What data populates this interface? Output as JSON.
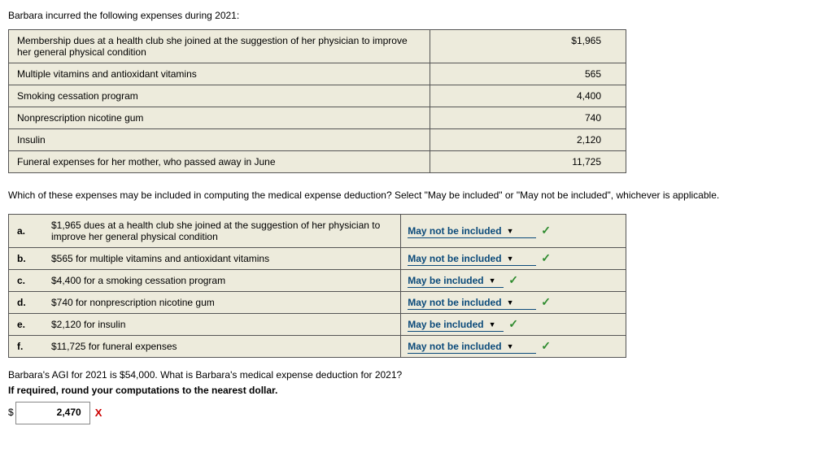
{
  "intro": "Barbara incurred the following expenses during 2021:",
  "expenses": [
    {
      "desc": "Membership dues at a health club she joined at the suggestion of her physician to improve her general physical condition",
      "amount": "$1,965"
    },
    {
      "desc": "Multiple vitamins and antioxidant vitamins",
      "amount": "565"
    },
    {
      "desc": "Smoking cessation program",
      "amount": "4,400"
    },
    {
      "desc": "Nonprescription nicotine gum",
      "amount": "740"
    },
    {
      "desc": "Insulin",
      "amount": "2,120"
    },
    {
      "desc": "Funeral expenses for her mother, who passed away in June",
      "amount": "11,725"
    }
  ],
  "question": "Which of these expenses may be included in computing the medical expense deduction? Select \"May be included\" or \"May not be included\", whichever is applicable.",
  "items": [
    {
      "letter": "a.",
      "desc": "$1,965 dues at a health club she joined at the suggestion of her physician to improve her general physical condition",
      "selection": "May not be included",
      "wide": true,
      "mark": "check"
    },
    {
      "letter": "b.",
      "desc": "$565 for multiple vitamins and antioxidant vitamins",
      "selection": "May not be included",
      "wide": true,
      "mark": "check"
    },
    {
      "letter": "c.",
      "desc": "$4,400 for a smoking cessation program",
      "selection": "May be included",
      "wide": false,
      "mark": "check"
    },
    {
      "letter": "d.",
      "desc": "$740 for nonprescription nicotine gum",
      "selection": "May not be included",
      "wide": true,
      "mark": "check"
    },
    {
      "letter": "e.",
      "desc": "$2,120 for insulin",
      "selection": "May be included",
      "wide": false,
      "mark": "check"
    },
    {
      "letter": "f.",
      "desc": "$11,725 for funeral expenses",
      "selection": "May not be included",
      "wide": true,
      "mark": "check"
    }
  ],
  "footer": {
    "line1": "Barbara's AGI for 2021 is $54,000. What is Barbara's medical expense deduction for 2021?",
    "line2": "If required, round your computations to the nearest dollar.",
    "dollar": "$",
    "answer": "2,470",
    "mark": "cross"
  },
  "glyphs": {
    "check": "✓",
    "cross": "X",
    "arrow": "▼"
  }
}
